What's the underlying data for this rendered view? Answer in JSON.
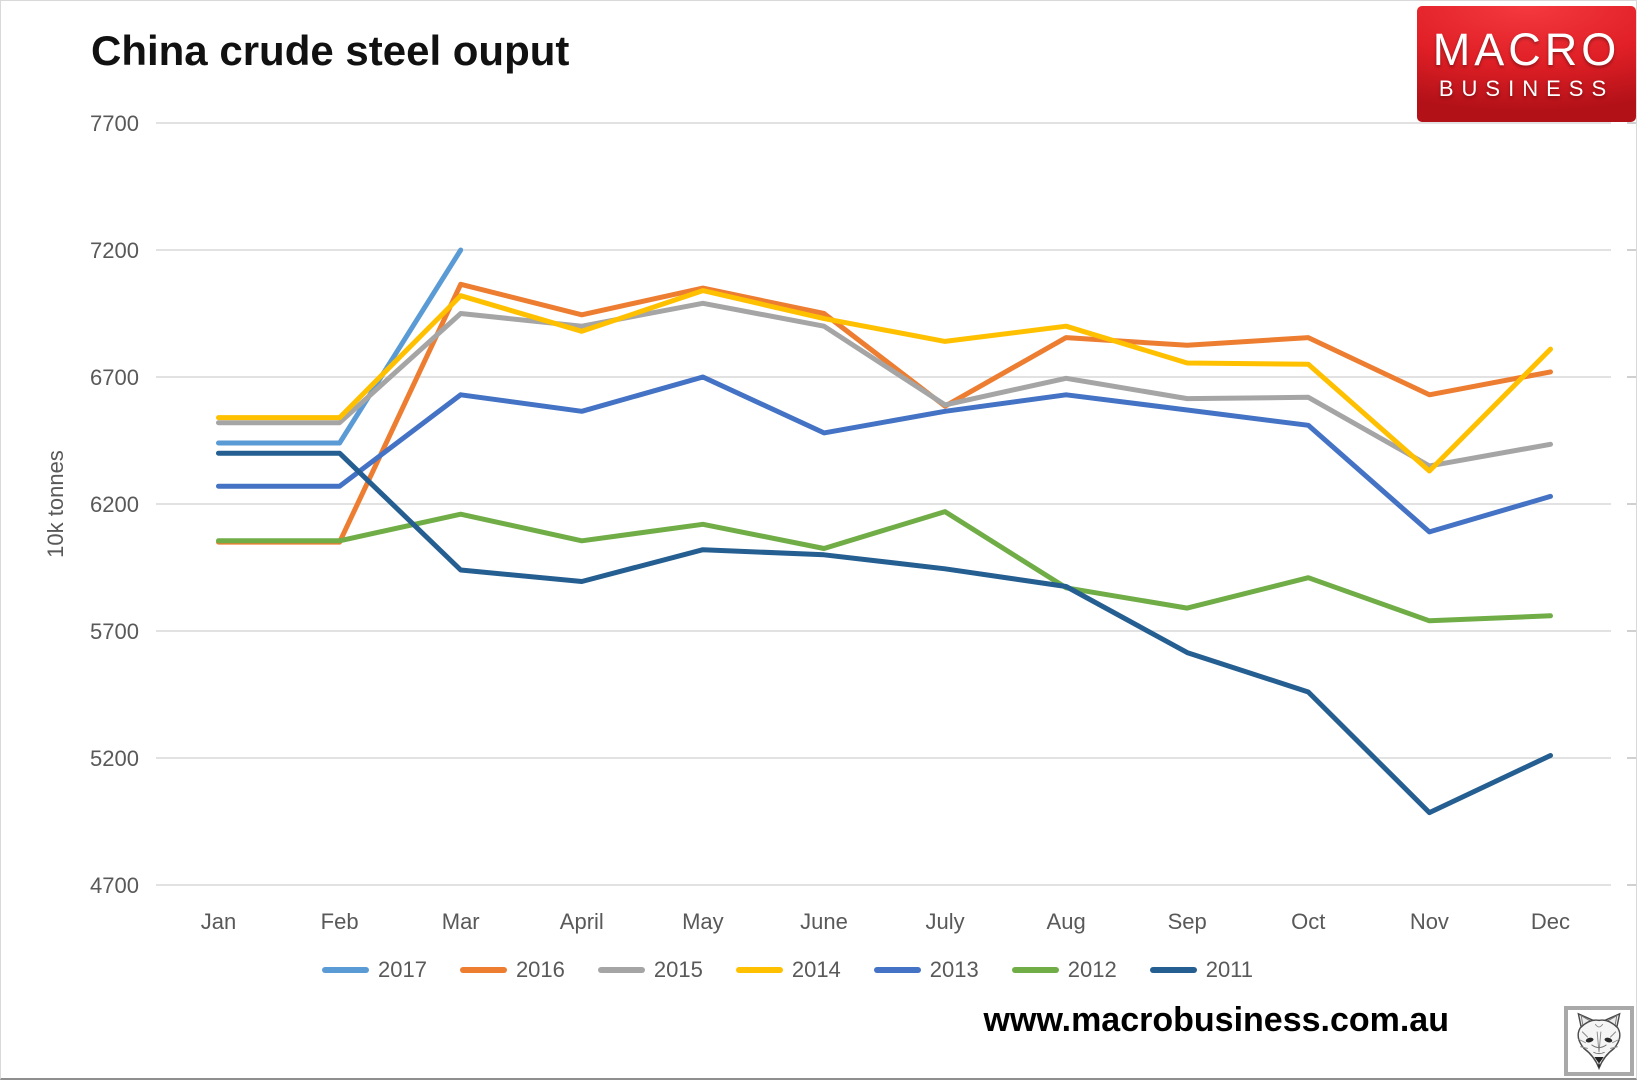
{
  "page": {
    "title": "China crude steel ouput",
    "footer_url": "www.macrobusiness.com.au",
    "logo": {
      "line1": "MACRO",
      "line2": "BUSINESS"
    }
  },
  "chart_data": {
    "type": "line",
    "title": "China crude steel ouput",
    "xlabel": "",
    "ylabel": "10k tonnes",
    "categories": [
      "Jan",
      "Feb",
      "Mar",
      "April",
      "May",
      "June",
      "July",
      "Aug",
      "Sep",
      "Oct",
      "Nov",
      "Dec"
    ],
    "y_ticks": [
      7700,
      7200,
      6700,
      6200,
      5700,
      5200,
      4700
    ],
    "ylim": [
      4700,
      7700
    ],
    "grid": true,
    "legend_position": "bottom",
    "gridline_color": "#d9d9d9",
    "tick_label_color": "#595959",
    "series": [
      {
        "name": "2017",
        "color": "#5B9BD5",
        "values": [
          6440,
          6440,
          7200,
          null,
          null,
          null,
          null,
          null,
          null,
          null,
          null,
          null
        ]
      },
      {
        "name": "2016",
        "color": "#ED7D31",
        "values": [
          6050,
          6050,
          7065,
          6945,
          7050,
          6950,
          6585,
          6855,
          6825,
          6855,
          6630,
          6720
        ]
      },
      {
        "name": "2015",
        "color": "#A5A5A5",
        "values": [
          6520,
          6520,
          6950,
          6900,
          6990,
          6900,
          6590,
          6695,
          6615,
          6620,
          6350,
          6435
        ]
      },
      {
        "name": "2014",
        "color": "#FFC000",
        "values": [
          6540,
          6540,
          7020,
          6880,
          7040,
          6930,
          6840,
          6900,
          6755,
          6750,
          6330,
          6810
        ]
      },
      {
        "name": "2013",
        "color": "#4472C4",
        "values": [
          6270,
          6270,
          6630,
          6565,
          6700,
          6480,
          6565,
          6630,
          6570,
          6510,
          6090,
          6230
        ]
      },
      {
        "name": "2012",
        "color": "#70AD47",
        "values": [
          6055,
          6055,
          6160,
          6055,
          6120,
          6025,
          6170,
          5870,
          5790,
          5910,
          5740,
          5760
        ]
      },
      {
        "name": "2011",
        "color": "#255E91",
        "values": [
          6400,
          6400,
          5940,
          5895,
          6020,
          6000,
          5945,
          5875,
          5615,
          5460,
          4985,
          5210
        ]
      }
    ]
  }
}
